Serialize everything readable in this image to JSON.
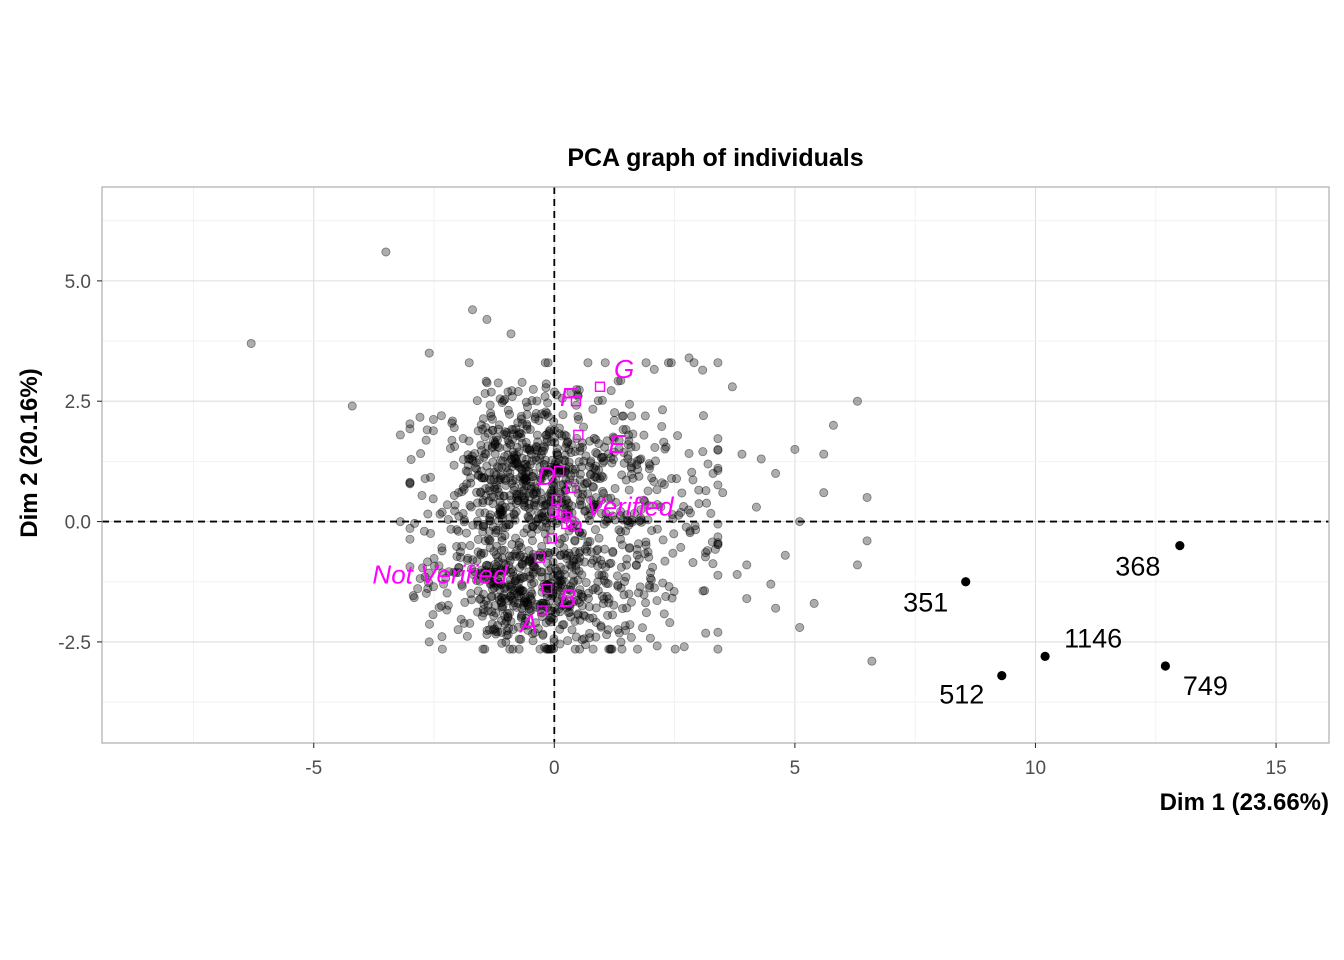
{
  "chart_data": {
    "type": "scatter",
    "title": "PCA graph of individuals",
    "xlabel": "Dim 1 (23.66%)",
    "ylabel": "Dim 2 (20.16%)",
    "xlim": [
      -9.4,
      16.1
    ],
    "ylim": [
      -4.6,
      6.95
    ],
    "x_ticks": [
      -5,
      0,
      5,
      10,
      15
    ],
    "x_tick_labels": [
      "-5",
      "0",
      "5",
      "10",
      "15"
    ],
    "y_ticks": [
      -2.5,
      0,
      2.5,
      5
    ],
    "y_tick_labels": [
      "-2.5",
      "0.0",
      "2.5",
      "5.0"
    ],
    "grid": true,
    "reference_lines": {
      "x": 0,
      "y": 0,
      "style": "dashed"
    },
    "colors": {
      "individuals": "#000000",
      "supplementary": "#ff00ff",
      "grid": "#dedede"
    },
    "individuals": {
      "clusters": [
        {
          "cx": -0.7,
          "cy": 0.9,
          "sx": 0.95,
          "sy": 0.9,
          "n": 520
        },
        {
          "cx": -0.6,
          "cy": -1.5,
          "sx": 1.0,
          "sy": 0.55,
          "n": 380
        },
        {
          "cx": 1.3,
          "cy": 0.2,
          "sx": 1.1,
          "sy": 1.3,
          "n": 300
        },
        {
          "cx": 0.2,
          "cy": -0.2,
          "sx": 1.6,
          "sy": 1.5,
          "n": 180
        }
      ],
      "outliers": [
        [
          -6.3,
          3.7
        ],
        [
          -3.5,
          5.6
        ],
        [
          -4.2,
          2.4
        ],
        [
          -3.2,
          1.8
        ],
        [
          -2.6,
          3.5
        ],
        [
          -1.7,
          4.4
        ],
        [
          -1.4,
          4.2
        ],
        [
          -0.9,
          3.9
        ],
        [
          -2.3,
          -1.3
        ],
        [
          -2.6,
          -2.5
        ],
        [
          2.8,
          3.4
        ],
        [
          3.7,
          2.8
        ],
        [
          3.1,
          2.2
        ],
        [
          3.9,
          1.4
        ],
        [
          4.3,
          1.3
        ],
        [
          4.6,
          1.0
        ],
        [
          5.0,
          1.5
        ],
        [
          5.6,
          1.4
        ],
        [
          5.6,
          0.6
        ],
        [
          6.3,
          2.5
        ],
        [
          5.8,
          2.0
        ],
        [
          6.5,
          0.5
        ],
        [
          6.5,
          -0.4
        ],
        [
          6.3,
          -0.9
        ],
        [
          4.2,
          0.3
        ],
        [
          5.1,
          0.0
        ],
        [
          4.8,
          -0.7
        ],
        [
          4.0,
          -0.9
        ],
        [
          4.5,
          -1.3
        ],
        [
          4.0,
          -1.6
        ],
        [
          4.6,
          -1.8
        ],
        [
          5.4,
          -1.7
        ],
        [
          5.1,
          -2.2
        ],
        [
          3.8,
          -1.1
        ],
        [
          3.4,
          -2.3
        ],
        [
          2.7,
          -2.6
        ],
        [
          6.6,
          -2.9
        ],
        [
          -3.2,
          0.0
        ],
        [
          -2.7,
          -0.2
        ],
        [
          3.5,
          0.6
        ],
        [
          3.3,
          1.0
        ],
        [
          2.4,
          -2.1
        ]
      ]
    },
    "highlighted_individuals": [
      {
        "label": "351",
        "x": 8.55,
        "y": -1.25
      },
      {
        "label": "368",
        "x": 13.0,
        "y": -0.5
      },
      {
        "label": "1146",
        "x": 10.2,
        "y": -2.8
      },
      {
        "label": "749",
        "x": 12.7,
        "y": -3.0
      },
      {
        "label": "512",
        "x": 9.3,
        "y": -3.2
      }
    ],
    "supplementary_categories": [
      {
        "label": "A",
        "x": -0.25,
        "y": -1.85
      },
      {
        "label": "B",
        "x": -0.15,
        "y": -1.4
      },
      {
        "label": "Not Verified",
        "x": -0.3,
        "y": -0.75
      },
      {
        "label": "Verified",
        "x": 0.25,
        "y": 0.1
      },
      {
        "label": "D",
        "x": 0.1,
        "y": 1.05
      },
      {
        "label": "E",
        "x": 0.5,
        "y": 1.8
      },
      {
        "label": "F",
        "x": 0.45,
        "y": 2.5
      },
      {
        "label": "G",
        "x": 0.95,
        "y": 2.8
      }
    ],
    "supplementary_levels": [
      [
        0.05,
        0.45
      ],
      [
        0.35,
        0.0
      ],
      [
        -0.05,
        -0.35
      ],
      [
        0.15,
        0.15
      ],
      [
        0.35,
        0.7
      ],
      [
        0.25,
        -0.05
      ],
      [
        0.45,
        -0.1
      ],
      [
        0.0,
        0.2
      ]
    ]
  }
}
